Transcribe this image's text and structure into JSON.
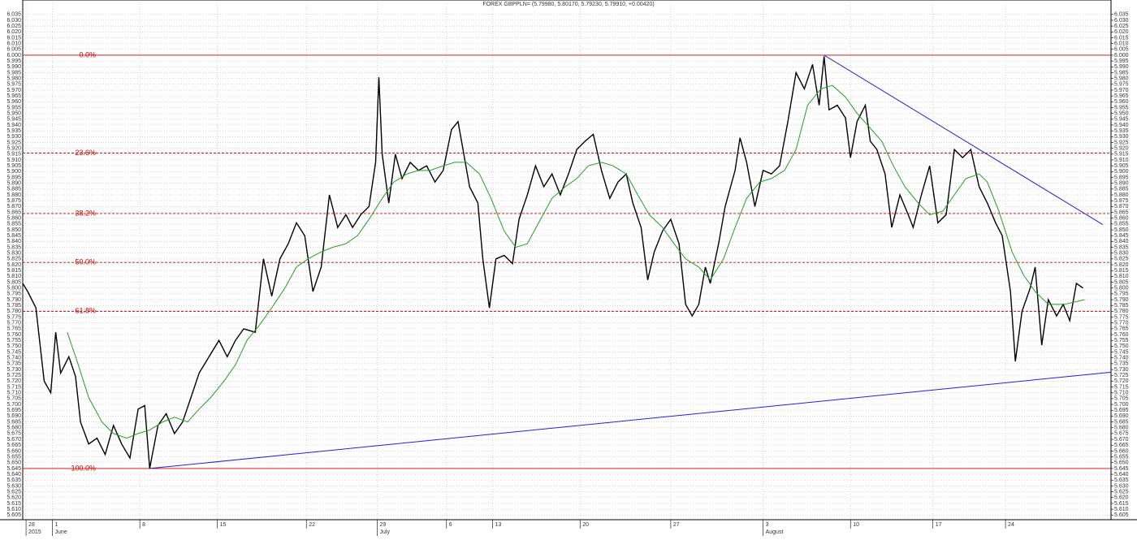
{
  "chart_data": {
    "type": "line",
    "title": "FOREX GBPPLN= (5.79980, 5.80170, 5.79230, 5.79910, +0.00420)",
    "xlim": [
      0,
      66
    ],
    "ylim": [
      5.601,
      6.046
    ],
    "grid": true,
    "xticks": [
      {
        "value": 0.2,
        "label": "28"
      },
      {
        "value": 1.8,
        "label": "1"
      },
      {
        "value": 7.1,
        "label": "8"
      },
      {
        "value": 11.8,
        "label": "15"
      },
      {
        "value": 17.2,
        "label": "22"
      },
      {
        "value": 21.5,
        "label": "29"
      },
      {
        "value": 25.7,
        "label": "6"
      },
      {
        "value": 28.5,
        "label": "13"
      },
      {
        "value": 33.8,
        "label": "20"
      },
      {
        "value": 39.3,
        "label": "27"
      },
      {
        "value": 44.9,
        "label": "3"
      },
      {
        "value": 50.2,
        "label": "10"
      },
      {
        "value": 55.2,
        "label": "17"
      },
      {
        "value": 59.6,
        "label": "24"
      }
    ],
    "months": [
      {
        "value": 0.2,
        "label": "2015"
      },
      {
        "value": 1.8,
        "label": "June"
      },
      {
        "value": 21.5,
        "label": "July"
      },
      {
        "value": 44.9,
        "label": "August"
      }
    ],
    "yticks": [
      5.605,
      {
        "value": 5.61,
        "label": "5.610"
      },
      5.615,
      {
        "value": 5.62,
        "label": "5.620"
      },
      5.625,
      {
        "value": 5.63,
        "label": "5.630"
      },
      5.635,
      {
        "value": 5.64,
        "label": "5.640"
      },
      5.645,
      {
        "value": 5.65,
        "label": "5.650"
      },
      5.655,
      {
        "value": 5.66,
        "label": "5.660"
      },
      5.665,
      {
        "value": 5.67,
        "label": "5.670"
      },
      5.675,
      {
        "value": 5.68,
        "label": "5.680"
      },
      5.685,
      {
        "value": 5.69,
        "label": "5.690"
      },
      5.695,
      {
        "value": 5.7,
        "label": "5.700"
      },
      5.705,
      {
        "value": 5.71,
        "label": "5.710"
      },
      5.715,
      {
        "value": 5.72,
        "label": "5.720"
      },
      5.725,
      {
        "value": 5.73,
        "label": "5.730"
      },
      5.735,
      {
        "value": 5.74,
        "label": "5.740"
      },
      5.745,
      {
        "value": 5.75,
        "label": "5.750"
      },
      5.755,
      {
        "value": 5.76,
        "label": "5.760"
      },
      5.765,
      {
        "value": 5.77,
        "label": "5.770"
      },
      5.775,
      {
        "value": 5.78,
        "label": "5.780"
      },
      5.785,
      {
        "value": 5.79,
        "label": "5.790"
      },
      5.795,
      {
        "value": 5.8,
        "label": "5.800"
      },
      5.805,
      {
        "value": 5.81,
        "label": "5.810"
      },
      5.815,
      {
        "value": 5.82,
        "label": "5.820"
      },
      5.825,
      {
        "value": 5.83,
        "label": "5.830"
      },
      5.835,
      {
        "value": 5.84,
        "label": "5.840"
      },
      5.845,
      {
        "value": 5.85,
        "label": "5.850"
      },
      5.855,
      {
        "value": 5.86,
        "label": "5.860"
      },
      5.865,
      {
        "value": 5.87,
        "label": "5.870"
      },
      5.875,
      {
        "value": 5.88,
        "label": "5.880"
      },
      5.885,
      {
        "value": 5.89,
        "label": "5.890"
      },
      5.895,
      {
        "value": 5.9,
        "label": "5.900"
      },
      5.905,
      {
        "value": 5.91,
        "label": "5.910"
      },
      5.915,
      {
        "value": 5.92,
        "label": "5.920"
      },
      5.925,
      {
        "value": 5.93,
        "label": "5.930"
      },
      5.935,
      {
        "value": 5.94,
        "label": "5.940"
      },
      5.945,
      {
        "value": 5.95,
        "label": "5.950"
      },
      5.955,
      {
        "value": 5.96,
        "label": "5.960"
      },
      5.965,
      {
        "value": 5.97,
        "label": "5.970"
      },
      5.975,
      {
        "value": 5.98,
        "label": "5.980"
      },
      5.985,
      {
        "value": 5.99,
        "label": "5.990"
      },
      5.995,
      {
        "value": 6,
        "label": "6.000"
      },
      6.005,
      {
        "value": 6.01,
        "label": "6.010"
      },
      6.015,
      {
        "value": 6.02,
        "label": "6.020"
      },
      6.025,
      {
        "value": 6.03,
        "label": "6.030"
      },
      6.035
    ],
    "fib_levels": [
      {
        "label": "0.0%",
        "value": 6.0,
        "color": "#d00000"
      },
      {
        "label": "23.6%",
        "value": 5.916,
        "color": "#d00000"
      },
      {
        "label": "38.2%",
        "value": 5.864,
        "color": "#d00000"
      },
      {
        "label": "50.0%",
        "value": 5.822,
        "color": "#d00000"
      },
      {
        "label": "61.8%",
        "value": 5.78,
        "color": "#d00000"
      },
      {
        "label": "100.0%",
        "value": 5.645,
        "color": "#d00000"
      }
    ],
    "trendlines": [
      {
        "color": "#2020e0",
        "x": [
          48.6,
          65.5
        ],
        "y": [
          6.0,
          5.8545
        ]
      },
      {
        "color": "#2020e0",
        "x": [
          7.7,
          66
        ],
        "y": [
          5.645,
          5.7277
        ]
      }
    ],
    "series": [
      {
        "color": "#000000",
        "x": [
          0.0,
          0.3,
          0.8,
          1.3,
          1.7,
          2.0,
          2.3,
          2.8,
          3.2,
          3.5,
          4.0,
          4.5,
          5.0,
          5.5,
          6.0,
          6.5,
          7.0,
          7.4,
          7.7,
          8.2,
          8.7,
          9.2,
          9.7,
          10.2,
          10.7,
          11.3,
          11.9,
          12.4,
          12.9,
          13.4,
          14.1,
          14.6,
          15.1,
          15.6,
          16.1,
          16.6,
          17.1,
          17.6,
          18.1,
          18.6,
          19.1,
          19.6,
          20.0,
          20.5,
          21.0,
          21.4,
          21.6,
          21.8,
          22.2,
          22.6,
          23.0,
          23.5,
          24.0,
          24.5,
          25.0,
          25.5,
          26.0,
          26.4,
          26.7,
          27.1,
          27.6,
          27.9,
          28.3,
          28.7,
          29.2,
          29.7,
          30.1,
          30.6,
          31.1,
          31.6,
          32.1,
          32.6,
          33.1,
          33.6,
          34.1,
          34.6,
          35.1,
          35.6,
          36.1,
          36.6,
          37.0,
          37.5,
          37.9,
          38.3,
          38.8,
          39.3,
          39.8,
          40.2,
          40.6,
          41.0,
          41.4,
          41.7,
          42.2,
          42.6,
          43.2,
          43.5,
          43.9,
          44.4,
          44.9,
          45.4,
          45.9,
          46.4,
          46.9,
          47.4,
          47.9,
          48.3,
          48.6,
          48.9,
          49.4,
          49.9,
          50.2,
          50.6,
          51.1,
          51.4,
          51.8,
          52.3,
          52.7,
          53.2,
          53.7,
          54.0,
          54.5,
          55.0,
          55.5,
          56.0,
          56.5,
          57.0,
          57.5,
          58.0,
          58.5,
          59.0,
          59.4,
          59.9,
          60.2,
          60.6,
          61.1,
          61.4,
          61.8,
          62.2,
          62.7,
          63.1,
          63.5,
          63.9,
          64.3
        ],
        "values": [
          5.804,
          5.797,
          5.783,
          5.72,
          5.71,
          5.762,
          5.727,
          5.741,
          5.724,
          5.685,
          5.666,
          5.671,
          5.657,
          5.682,
          5.666,
          5.654,
          5.696,
          5.699,
          5.645,
          5.682,
          5.692,
          5.675,
          5.685,
          5.706,
          5.727,
          5.741,
          5.755,
          5.741,
          5.755,
          5.765,
          5.762,
          5.825,
          5.793,
          5.825,
          5.838,
          5.856,
          5.845,
          5.797,
          5.818,
          5.88,
          5.852,
          5.863,
          5.852,
          5.863,
          5.87,
          5.908,
          5.981,
          5.915,
          5.873,
          5.915,
          5.894,
          5.908,
          5.901,
          5.905,
          5.891,
          5.901,
          5.936,
          5.943,
          5.919,
          5.887,
          5.873,
          5.825,
          5.783,
          5.825,
          5.828,
          5.821,
          5.859,
          5.88,
          5.905,
          5.887,
          5.898,
          5.88,
          5.898,
          5.919,
          5.926,
          5.932,
          5.901,
          5.877,
          5.891,
          5.898,
          5.873,
          5.852,
          5.807,
          5.831,
          5.849,
          5.859,
          5.838,
          5.786,
          5.776,
          5.786,
          5.818,
          5.804,
          5.838,
          5.87,
          5.901,
          5.929,
          5.908,
          5.87,
          5.901,
          5.898,
          5.905,
          5.943,
          5.985,
          5.971,
          5.992,
          5.957,
          5.999,
          5.953,
          5.957,
          5.946,
          5.912,
          5.943,
          5.957,
          5.926,
          5.919,
          5.898,
          5.852,
          5.88,
          5.863,
          5.852,
          5.88,
          5.905,
          5.856,
          5.863,
          5.919,
          5.912,
          5.919,
          5.887,
          5.873,
          5.856,
          5.845,
          5.797,
          5.737,
          5.78,
          5.8,
          5.818,
          5.751,
          5.79,
          5.776,
          5.786,
          5.772,
          5.804,
          5.8
        ]
      },
      {
        "color": "#20a020",
        "x": [
          2.7,
          3.3,
          4.0,
          4.8,
          5.5,
          6.3,
          7.0,
          7.7,
          8.5,
          9.2,
          10.0,
          10.7,
          11.4,
          12.2,
          12.9,
          13.6,
          14.4,
          15.1,
          15.9,
          16.6,
          17.3,
          18.1,
          18.8,
          19.6,
          20.3,
          21.0,
          21.8,
          22.5,
          23.3,
          24.0,
          24.7,
          25.5,
          26.2,
          26.9,
          27.7,
          28.4,
          29.2,
          29.9,
          30.6,
          31.4,
          32.1,
          32.9,
          33.6,
          34.3,
          35.1,
          35.8,
          36.6,
          37.3,
          38.0,
          38.8,
          39.5,
          40.2,
          41.0,
          41.7,
          42.5,
          43.2,
          43.9,
          44.7,
          45.4,
          46.2,
          46.9,
          47.6,
          48.4,
          49.1,
          49.9,
          50.6,
          51.3,
          52.1,
          52.8,
          53.5,
          54.3,
          55.0,
          55.8,
          56.5,
          57.2,
          58.0,
          58.5,
          59.2,
          60.0,
          60.7,
          61.4,
          62.2,
          63.2,
          64.4
        ],
        "values": [
          5.762,
          5.737,
          5.706,
          5.685,
          5.675,
          5.671,
          5.675,
          5.678,
          5.685,
          5.689,
          5.685,
          5.696,
          5.706,
          5.72,
          5.734,
          5.755,
          5.769,
          5.783,
          5.8,
          5.818,
          5.825,
          5.831,
          5.835,
          5.838,
          5.845,
          5.859,
          5.877,
          5.891,
          5.898,
          5.901,
          5.901,
          5.905,
          5.908,
          5.908,
          5.898,
          5.877,
          5.849,
          5.835,
          5.838,
          5.859,
          5.877,
          5.887,
          5.894,
          5.905,
          5.908,
          5.905,
          5.898,
          5.88,
          5.863,
          5.852,
          5.838,
          5.825,
          5.818,
          5.807,
          5.825,
          5.852,
          5.877,
          5.891,
          5.894,
          5.901,
          5.919,
          5.957,
          5.971,
          5.974,
          5.964,
          5.95,
          5.939,
          5.926,
          5.905,
          5.887,
          5.873,
          5.863,
          5.866,
          5.88,
          5.894,
          5.898,
          5.891,
          5.866,
          5.831,
          5.811,
          5.797,
          5.786,
          5.786,
          5.79
        ]
      }
    ]
  }
}
